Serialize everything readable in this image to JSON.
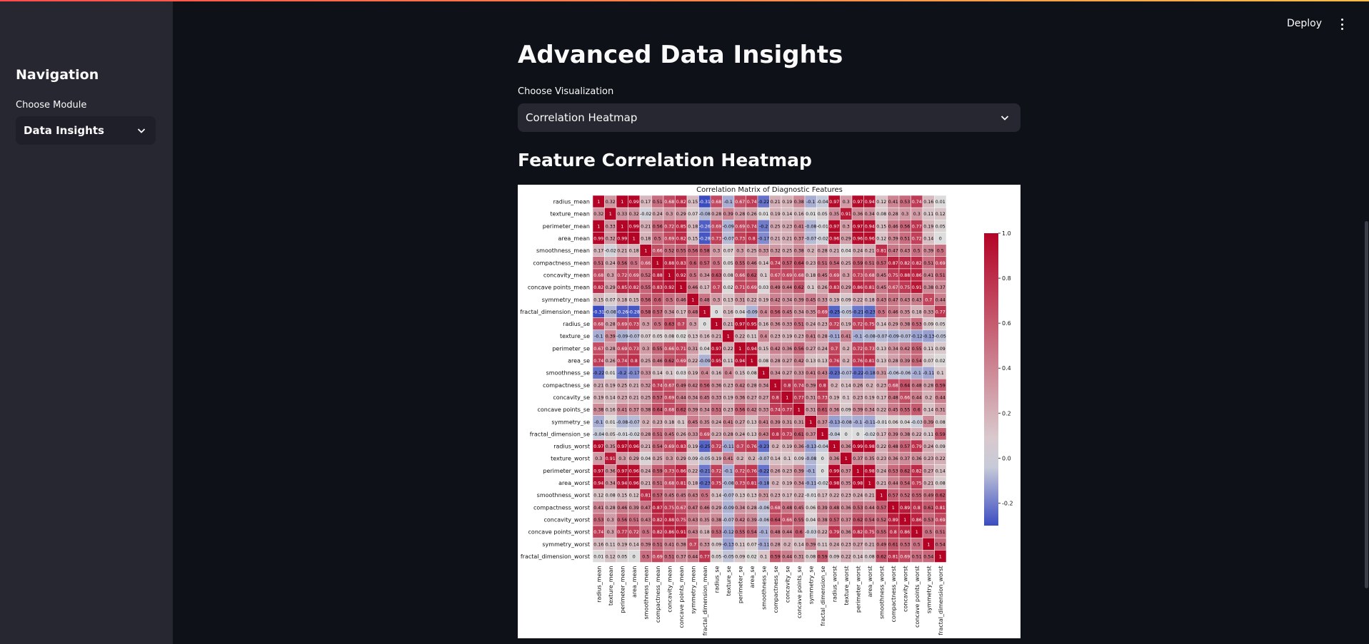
{
  "app": {
    "deploy_label": "Deploy",
    "menu_icon": "kebab-menu-icon"
  },
  "sidebar": {
    "title": "Navigation",
    "module_label": "Choose Module",
    "module_value": "Data Insights"
  },
  "main": {
    "title": "Advanced Data Insights",
    "visualization_label": "Choose Visualization",
    "visualization_value": "Correlation Heatmap",
    "section_title": "Feature Correlation Heatmap"
  },
  "colors": {
    "background": "#0e1117",
    "sidebar": "#262730",
    "cmap_low": "#3b4cc0",
    "cmap_mid": "#dddddd",
    "cmap_high": "#b40426"
  },
  "chart_data": {
    "type": "heatmap",
    "title": "Correlation Matrix of Diagnostic Features",
    "labels": [
      "radius_mean",
      "texture_mean",
      "perimeter_mean",
      "area_mean",
      "smoothness_mean",
      "compactness_mean",
      "concavity_mean",
      "concave points_mean",
      "symmetry_mean",
      "fractal_dimension_mean",
      "radius_se",
      "texture_se",
      "perimeter_se",
      "area_se",
      "smoothness_se",
      "compactness_se",
      "concavity_se",
      "concave points_se",
      "symmetry_se",
      "fractal_dimension_se",
      "radius_worst",
      "texture_worst",
      "perimeter_worst",
      "area_worst",
      "smoothness_worst",
      "compactness_worst",
      "concavity_worst",
      "concave points_worst",
      "symmetry_worst",
      "fractal_dimension_worst"
    ],
    "colorbar": {
      "min": -0.3,
      "max": 1.0,
      "ticks": [
        "1.0",
        "0.8",
        "0.6",
        "0.4",
        "0.2",
        "0.0",
        "-0.2"
      ]
    },
    "annot_decimals": 2,
    "matrix": [
      [
        1.0,
        0.32,
        1.0,
        0.99,
        0.17,
        0.51,
        0.68,
        0.82,
        0.15,
        -0.31,
        0.68,
        -0.1,
        0.67,
        0.74,
        -0.22,
        0.21,
        0.19,
        0.38,
        -0.1,
        -0.04,
        0.97,
        0.3,
        0.97,
        0.94,
        0.12,
        0.41,
        0.53,
        0.74,
        0.16,
        0.01
      ],
      [
        0.32,
        1.0,
        0.33,
        0.32,
        -0.02,
        0.24,
        0.3,
        0.29,
        0.07,
        -0.08,
        0.28,
        0.39,
        0.28,
        0.26,
        0.01,
        0.19,
        0.14,
        0.16,
        0.01,
        0.05,
        0.35,
        0.91,
        0.36,
        0.34,
        0.08,
        0.28,
        0.3,
        0.3,
        0.11,
        0.12
      ],
      [
        1.0,
        0.33,
        1.0,
        0.99,
        0.21,
        0.56,
        0.72,
        0.85,
        0.18,
        -0.26,
        0.69,
        -0.09,
        0.69,
        0.74,
        -0.2,
        0.25,
        0.23,
        0.41,
        -0.08,
        -0.01,
        0.97,
        0.3,
        0.97,
        0.94,
        0.15,
        0.46,
        0.56,
        0.77,
        0.19,
        0.05
      ],
      [
        0.99,
        0.32,
        0.99,
        1.0,
        0.18,
        0.5,
        0.69,
        0.82,
        0.15,
        -0.28,
        0.73,
        -0.07,
        0.73,
        0.8,
        -0.17,
        0.21,
        0.21,
        0.37,
        -0.07,
        -0.02,
        0.96,
        0.29,
        0.96,
        0.96,
        0.12,
        0.39,
        0.51,
        0.72,
        0.14,
        0.0
      ],
      [
        0.17,
        -0.02,
        0.21,
        0.18,
        1.0,
        0.66,
        0.52,
        0.55,
        0.56,
        0.58,
        0.3,
        0.07,
        0.3,
        0.25,
        0.33,
        0.32,
        0.25,
        0.38,
        0.2,
        0.28,
        0.21,
        0.04,
        0.24,
        0.21,
        0.81,
        0.47,
        0.43,
        0.5,
        0.39,
        0.5
      ],
      [
        0.51,
        0.24,
        0.56,
        0.5,
        0.66,
        1.0,
        0.88,
        0.83,
        0.6,
        0.57,
        0.5,
        0.05,
        0.55,
        0.46,
        0.14,
        0.74,
        0.57,
        0.64,
        0.23,
        0.51,
        0.54,
        0.25,
        0.59,
        0.51,
        0.57,
        0.87,
        0.82,
        0.82,
        0.51,
        0.69
      ],
      [
        0.68,
        0.3,
        0.72,
        0.69,
        0.52,
        0.88,
        1.0,
        0.92,
        0.5,
        0.34,
        0.63,
        0.08,
        0.66,
        0.62,
        0.1,
        0.67,
        0.69,
        0.68,
        0.18,
        0.45,
        0.69,
        0.3,
        0.73,
        0.68,
        0.45,
        0.75,
        0.88,
        0.86,
        0.41,
        0.51
      ],
      [
        0.82,
        0.29,
        0.85,
        0.82,
        0.55,
        0.83,
        0.92,
        1.0,
        0.46,
        0.17,
        0.7,
        0.02,
        0.71,
        0.69,
        0.03,
        0.49,
        0.44,
        0.62,
        0.1,
        0.26,
        0.83,
        0.29,
        0.86,
        0.81,
        0.45,
        0.67,
        0.75,
        0.91,
        0.38,
        0.37
      ],
      [
        0.15,
        0.07,
        0.18,
        0.15,
        0.56,
        0.6,
        0.5,
        0.46,
        1.0,
        0.48,
        0.3,
        0.13,
        0.31,
        0.22,
        0.19,
        0.42,
        0.34,
        0.39,
        0.45,
        0.33,
        0.19,
        0.09,
        0.22,
        0.18,
        0.43,
        0.47,
        0.43,
        0.43,
        0.7,
        0.44
      ],
      [
        -0.31,
        -0.08,
        -0.26,
        -0.28,
        0.58,
        0.57,
        0.34,
        0.17,
        0.48,
        1.0,
        0.0,
        0.16,
        0.04,
        -0.09,
        0.4,
        0.56,
        0.45,
        0.34,
        0.35,
        0.69,
        -0.25,
        -0.05,
        -0.21,
        -0.23,
        0.5,
        0.46,
        0.35,
        0.18,
        0.33,
        0.77
      ],
      [
        0.68,
        0.28,
        0.69,
        0.73,
        0.3,
        0.5,
        0.63,
        0.7,
        0.3,
        0.0,
        1.0,
        0.21,
        0.97,
        0.95,
        0.16,
        0.36,
        0.33,
        0.51,
        0.24,
        0.23,
        0.72,
        0.19,
        0.72,
        0.75,
        0.14,
        0.29,
        0.38,
        0.53,
        0.09,
        0.05
      ],
      [
        -0.1,
        0.39,
        -0.09,
        -0.07,
        0.07,
        0.05,
        0.08,
        0.02,
        0.13,
        0.16,
        0.21,
        1.0,
        0.22,
        0.11,
        0.4,
        0.23,
        0.19,
        0.23,
        0.41,
        0.28,
        -0.11,
        0.41,
        -0.1,
        -0.08,
        -0.07,
        -0.09,
        -0.07,
        -0.12,
        -0.13,
        -0.05
      ],
      [
        0.67,
        0.28,
        0.69,
        0.73,
        0.3,
        0.55,
        0.66,
        0.71,
        0.31,
        0.04,
        0.97,
        0.22,
        1.0,
        0.94,
        0.15,
        0.42,
        0.36,
        0.56,
        0.27,
        0.24,
        0.7,
        0.2,
        0.72,
        0.73,
        0.13,
        0.34,
        0.42,
        0.55,
        0.11,
        0.09
      ],
      [
        0.74,
        0.26,
        0.74,
        0.8,
        0.25,
        0.46,
        0.62,
        0.69,
        0.22,
        -0.09,
        0.95,
        0.11,
        0.94,
        1.0,
        0.08,
        0.28,
        0.27,
        0.42,
        0.13,
        0.13,
        0.76,
        0.2,
        0.76,
        0.81,
        0.13,
        0.28,
        0.39,
        0.54,
        0.07,
        0.02
      ],
      [
        -0.22,
        0.01,
        -0.2,
        -0.17,
        0.33,
        0.14,
        0.1,
        0.03,
        0.19,
        0.4,
        0.16,
        0.4,
        0.15,
        0.08,
        1.0,
        0.34,
        0.27,
        0.33,
        0.41,
        0.43,
        -0.23,
        -0.07,
        -0.22,
        -0.18,
        0.31,
        -0.06,
        -0.06,
        -0.1,
        -0.11,
        0.1
      ],
      [
        0.21,
        0.19,
        0.25,
        0.21,
        0.32,
        0.74,
        0.67,
        0.49,
        0.42,
        0.56,
        0.36,
        0.23,
        0.42,
        0.28,
        0.34,
        1.0,
        0.8,
        0.74,
        0.39,
        0.8,
        0.2,
        0.14,
        0.26,
        0.2,
        0.23,
        0.68,
        0.64,
        0.48,
        0.28,
        0.59
      ],
      [
        0.19,
        0.14,
        0.23,
        0.21,
        0.25,
        0.57,
        0.69,
        0.44,
        0.34,
        0.45,
        0.33,
        0.19,
        0.36,
        0.27,
        0.27,
        0.8,
        1.0,
        0.77,
        0.31,
        0.73,
        0.19,
        0.1,
        0.23,
        0.19,
        0.17,
        0.48,
        0.66,
        0.44,
        0.2,
        0.44
      ],
      [
        0.38,
        0.16,
        0.41,
        0.37,
        0.38,
        0.64,
        0.68,
        0.62,
        0.39,
        0.34,
        0.51,
        0.23,
        0.56,
        0.42,
        0.33,
        0.74,
        0.77,
        1.0,
        0.31,
        0.61,
        0.36,
        0.09,
        0.39,
        0.34,
        0.22,
        0.45,
        0.55,
        0.6,
        0.14,
        0.31
      ],
      [
        -0.1,
        0.01,
        -0.08,
        -0.07,
        0.2,
        0.23,
        0.18,
        0.1,
        0.45,
        0.35,
        0.24,
        0.41,
        0.27,
        0.13,
        0.41,
        0.39,
        0.31,
        0.31,
        1.0,
        0.37,
        -0.13,
        -0.08,
        -0.1,
        -0.11,
        -0.01,
        0.06,
        0.04,
        -0.03,
        0.39,
        0.08
      ],
      [
        -0.04,
        0.05,
        -0.01,
        -0.02,
        0.28,
        0.51,
        0.45,
        0.26,
        0.33,
        0.69,
        0.23,
        0.28,
        0.24,
        0.13,
        0.43,
        0.8,
        0.73,
        0.61,
        0.37,
        1.0,
        -0.04,
        0.0,
        -0.0,
        -0.02,
        0.17,
        0.39,
        0.38,
        0.22,
        0.11,
        0.59
      ],
      [
        0.97,
        0.35,
        0.97,
        0.96,
        0.21,
        0.54,
        0.69,
        0.83,
        0.19,
        -0.25,
        0.72,
        -0.11,
        0.7,
        0.76,
        -0.23,
        0.2,
        0.19,
        0.36,
        -0.13,
        -0.04,
        1.0,
        0.36,
        0.99,
        0.98,
        0.22,
        0.48,
        0.57,
        0.79,
        0.24,
        0.09
      ],
      [
        0.3,
        0.91,
        0.3,
        0.29,
        0.04,
        0.25,
        0.3,
        0.29,
        0.09,
        -0.05,
        0.19,
        0.41,
        0.2,
        0.2,
        -0.07,
        0.14,
        0.1,
        0.09,
        -0.08,
        0.0,
        0.36,
        1.0,
        0.37,
        0.35,
        0.23,
        0.36,
        0.37,
        0.36,
        0.23,
        0.22
      ],
      [
        0.97,
        0.36,
        0.97,
        0.96,
        0.24,
        0.59,
        0.73,
        0.86,
        0.22,
        -0.21,
        0.72,
        -0.1,
        0.72,
        0.76,
        -0.22,
        0.26,
        0.23,
        0.39,
        -0.1,
        -0.0,
        0.99,
        0.37,
        1.0,
        0.98,
        0.24,
        0.53,
        0.62,
        0.82,
        0.27,
        0.14
      ],
      [
        0.94,
        0.34,
        0.94,
        0.96,
        0.21,
        0.51,
        0.68,
        0.81,
        0.18,
        -0.23,
        0.75,
        -0.08,
        0.73,
        0.81,
        -0.18,
        0.2,
        0.19,
        0.34,
        -0.11,
        -0.02,
        0.98,
        0.35,
        0.98,
        1.0,
        0.21,
        0.44,
        0.54,
        0.75,
        0.21,
        0.08
      ],
      [
        0.12,
        0.08,
        0.15,
        0.12,
        0.81,
        0.57,
        0.45,
        0.45,
        0.43,
        0.5,
        0.14,
        -0.07,
        0.13,
        0.13,
        0.31,
        0.23,
        0.17,
        0.22,
        -0.01,
        0.17,
        0.22,
        0.23,
        0.24,
        0.21,
        1.0,
        0.57,
        0.52,
        0.55,
        0.49,
        0.62
      ],
      [
        0.41,
        0.28,
        0.46,
        0.39,
        0.47,
        0.87,
        0.75,
        0.67,
        0.47,
        0.46,
        0.29,
        -0.09,
        0.34,
        0.28,
        -0.06,
        0.68,
        0.48,
        0.45,
        0.06,
        0.39,
        0.48,
        0.36,
        0.53,
        0.44,
        0.57,
        1.0,
        0.89,
        0.8,
        0.61,
        0.81
      ],
      [
        0.53,
        0.3,
        0.56,
        0.51,
        0.43,
        0.82,
        0.88,
        0.75,
        0.43,
        0.35,
        0.38,
        -0.07,
        0.42,
        0.39,
        -0.06,
        0.64,
        0.66,
        0.55,
        0.04,
        0.38,
        0.57,
        0.37,
        0.62,
        0.54,
        0.52,
        0.89,
        1.0,
        0.86,
        0.53,
        0.69
      ],
      [
        0.74,
        0.3,
        0.77,
        0.72,
        0.5,
        0.82,
        0.86,
        0.91,
        0.43,
        0.18,
        0.53,
        -0.12,
        0.55,
        0.54,
        -0.1,
        0.48,
        0.44,
        0.6,
        -0.03,
        0.22,
        0.79,
        0.36,
        0.82,
        0.75,
        0.55,
        0.8,
        0.86,
        1.0,
        0.5,
        0.51
      ],
      [
        0.16,
        0.11,
        0.19,
        0.14,
        0.39,
        0.51,
        0.41,
        0.38,
        0.7,
        0.33,
        0.09,
        -0.13,
        0.11,
        0.07,
        -0.11,
        0.28,
        0.2,
        0.14,
        0.39,
        0.11,
        0.24,
        0.23,
        0.27,
        0.21,
        0.49,
        0.61,
        0.53,
        0.5,
        1.0,
        0.54
      ],
      [
        0.01,
        0.12,
        0.05,
        0.0,
        0.5,
        0.69,
        0.51,
        0.37,
        0.44,
        0.77,
        0.05,
        -0.05,
        0.09,
        0.02,
        0.1,
        0.59,
        0.44,
        0.31,
        0.08,
        0.59,
        0.09,
        0.22,
        0.14,
        0.08,
        0.62,
        0.81,
        0.69,
        0.51,
        0.54,
        1.0
      ]
    ]
  }
}
